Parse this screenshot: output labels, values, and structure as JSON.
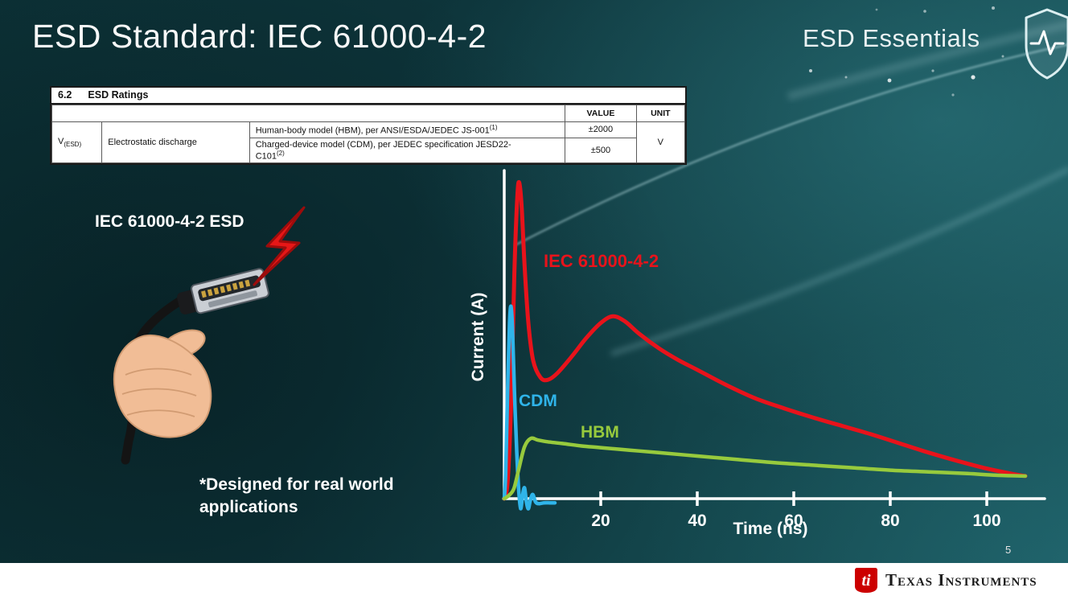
{
  "slide": {
    "title": "ESD Standard: IEC 61000-4-2",
    "series_brand": "ESD Essentials",
    "illustration_label": "IEC 61000-4-2 ESD",
    "footnote": "*Designed for real world applications",
    "page_number": "5"
  },
  "ratings_table": {
    "section_number": "6.2",
    "section_title": "ESD Ratings",
    "headers": {
      "value": "VALUE",
      "unit": "UNIT"
    },
    "symbol": "V",
    "symbol_subscript": "(ESD)",
    "parameter": "Electrostatic discharge",
    "rows": [
      {
        "description": "Human-body model (HBM), per ANSI/ESDA/JEDEC JS-001",
        "footnote_ref": "(1)",
        "value": "±2000"
      },
      {
        "description": "Charged-device model (CDM), per JEDEC specification JESD22-C101",
        "footnote_ref": "(2)",
        "value": "±500"
      }
    ],
    "unit": "V"
  },
  "chart_data": {
    "type": "line",
    "title": "",
    "xlabel": "Time (ns)",
    "ylabel": "Current (A)",
    "x_ticks": [
      20,
      40,
      60,
      80,
      100
    ],
    "xlim": [
      0,
      110
    ],
    "ylim": [
      0,
      4
    ],
    "grid": false,
    "legend": "inline-labels",
    "series": [
      {
        "name": "IEC 61000-4-2",
        "color": "#e8131b",
        "points": [
          [
            0,
            0
          ],
          [
            0.7,
            0.2
          ],
          [
            1.4,
            1.1
          ],
          [
            2.1,
            2.7
          ],
          [
            2.7,
            3.6
          ],
          [
            3.1,
            3.78
          ],
          [
            3.6,
            3.5
          ],
          [
            4.2,
            2.8
          ],
          [
            5,
            2.1
          ],
          [
            6,
            1.65
          ],
          [
            7.5,
            1.45
          ],
          [
            9,
            1.42
          ],
          [
            11,
            1.5
          ],
          [
            14,
            1.7
          ],
          [
            17,
            1.92
          ],
          [
            20,
            2.1
          ],
          [
            22.5,
            2.18
          ],
          [
            25,
            2.12
          ],
          [
            28,
            1.97
          ],
          [
            32,
            1.8
          ],
          [
            36,
            1.66
          ],
          [
            40,
            1.54
          ],
          [
            46,
            1.36
          ],
          [
            52,
            1.2
          ],
          [
            58,
            1.08
          ],
          [
            64,
            0.97
          ],
          [
            70,
            0.87
          ],
          [
            76,
            0.77
          ],
          [
            82,
            0.66
          ],
          [
            88,
            0.55
          ],
          [
            94,
            0.45
          ],
          [
            100,
            0.36
          ],
          [
            105,
            0.3
          ],
          [
            108,
            0.27
          ]
        ]
      },
      {
        "name": "CDM",
        "color": "#2fb4e9",
        "points": [
          [
            0,
            0
          ],
          [
            0.3,
            0.3
          ],
          [
            0.7,
            1.3
          ],
          [
            1.1,
            2.1
          ],
          [
            1.4,
            2.3
          ],
          [
            1.7,
            2.05
          ],
          [
            2.1,
            1.3
          ],
          [
            2.6,
            0.55
          ],
          [
            3.0,
            0.1
          ],
          [
            3.4,
            -0.12
          ],
          [
            3.8,
            0.04
          ],
          [
            4.2,
            0.13
          ],
          [
            4.6,
            -0.04
          ],
          [
            5.0,
            -0.12
          ],
          [
            5.4,
            -0.02
          ],
          [
            5.9,
            0.05
          ],
          [
            6.5,
            -0.04
          ],
          [
            7.2,
            -0.06
          ],
          [
            8.2,
            -0.05
          ],
          [
            9.5,
            -0.05
          ],
          [
            10.5,
            -0.05
          ]
        ]
      },
      {
        "name": "HBM",
        "color": "#97ca3d",
        "points": [
          [
            0,
            0
          ],
          [
            1,
            0.04
          ],
          [
            2,
            0.12
          ],
          [
            3,
            0.35
          ],
          [
            4.2,
            0.62
          ],
          [
            5.5,
            0.72
          ],
          [
            7,
            0.7
          ],
          [
            9,
            0.68
          ],
          [
            12,
            0.66
          ],
          [
            16,
            0.63
          ],
          [
            20,
            0.61
          ],
          [
            26,
            0.58
          ],
          [
            32,
            0.55
          ],
          [
            40,
            0.51
          ],
          [
            48,
            0.47
          ],
          [
            56,
            0.43
          ],
          [
            64,
            0.4
          ],
          [
            72,
            0.37
          ],
          [
            80,
            0.34
          ],
          [
            88,
            0.32
          ],
          [
            96,
            0.3
          ],
          [
            102,
            0.28
          ],
          [
            108,
            0.27
          ]
        ]
      }
    ]
  },
  "footer": {
    "brand": "Texas Instruments"
  }
}
